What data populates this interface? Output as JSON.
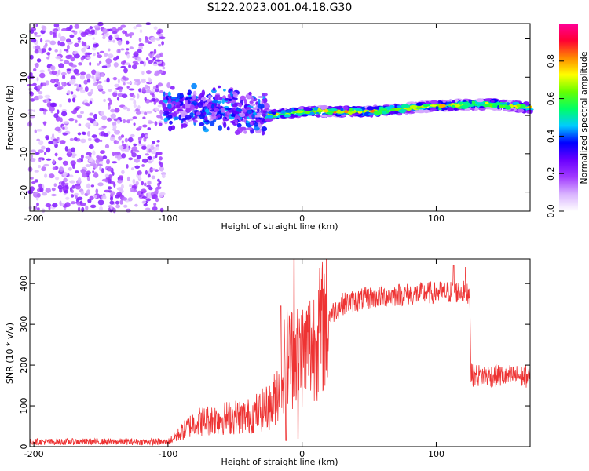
{
  "figure": {
    "title": "S122.2023.001.04.18.G30"
  },
  "chart_data": [
    {
      "type": "heatmap",
      "xlabel": "Height of straight line (km)",
      "ylabel": "Frequency (Hz)",
      "xlim": [
        -203,
        170
      ],
      "ylim": [
        -25,
        24
      ],
      "xticks": [
        -200,
        -100,
        0,
        100
      ],
      "yticks": [
        -20,
        -10,
        0,
        10,
        20
      ],
      "colorbar": {
        "label": "Normalized spectral amplitude",
        "range": [
          0,
          1
        ],
        "ticks": [
          "0.0",
          "0.2",
          "0.4",
          "0.6",
          "0.8"
        ],
        "colors": [
          "#ffffff",
          "#d9b3ff",
          "#a23bff",
          "#6a00ff",
          "#0000ff",
          "#00ccff",
          "#00ff66",
          "#66ff00",
          "#ffff00",
          "#ff8800",
          "#ff0033",
          "#ff0099"
        ]
      },
      "regions": [
        {
          "name": "noise",
          "x_range": [
            -203,
            -103
          ],
          "y_range": [
            -25,
            24
          ],
          "amplitude": 0.12
        },
        {
          "name": "scattered",
          "x_range": [
            -103,
            -25
          ],
          "y_center": 2,
          "y_spread": 6,
          "amplitude": 0.25
        },
        {
          "name": "ridge",
          "x_range": [
            -25,
            170
          ],
          "y_center": 1,
          "amplitude": 0.75
        }
      ],
      "ridge_y_by_x": [
        [
          -25,
          0
        ],
        [
          0,
          1
        ],
        [
          50,
          1
        ],
        [
          100,
          2.5
        ],
        [
          140,
          3
        ],
        [
          170,
          2
        ]
      ]
    },
    {
      "type": "line",
      "xlabel": "Height of straight line (km)",
      "ylabel": "SNR (10 * v/v)",
      "xlim": [
        -203,
        170
      ],
      "ylim": [
        0,
        460
      ],
      "xticks": [
        -200,
        -100,
        0,
        100
      ],
      "yticks": [
        0,
        100,
        200,
        300,
        400
      ],
      "color": "#ee3333",
      "envelope": [
        [
          -203,
          12
        ],
        [
          -100,
          12
        ],
        [
          -92,
          30
        ],
        [
          -80,
          60
        ],
        [
          -60,
          70
        ],
        [
          -40,
          75
        ],
        [
          -22,
          100
        ],
        [
          -12,
          220
        ],
        [
          0,
          230
        ],
        [
          10,
          260
        ],
        [
          20,
          320
        ],
        [
          30,
          350
        ],
        [
          50,
          365
        ],
        [
          70,
          372
        ],
        [
          100,
          378
        ],
        [
          120,
          380
        ],
        [
          125,
          378
        ],
        [
          126,
          175
        ],
        [
          170,
          172
        ]
      ],
      "spikes": [
        [
          -6,
          460
        ],
        [
          -3,
          20
        ],
        [
          -16,
          345
        ],
        [
          -12,
          15
        ],
        [
          113,
          445
        ],
        [
          122,
          440
        ]
      ]
    }
  ]
}
